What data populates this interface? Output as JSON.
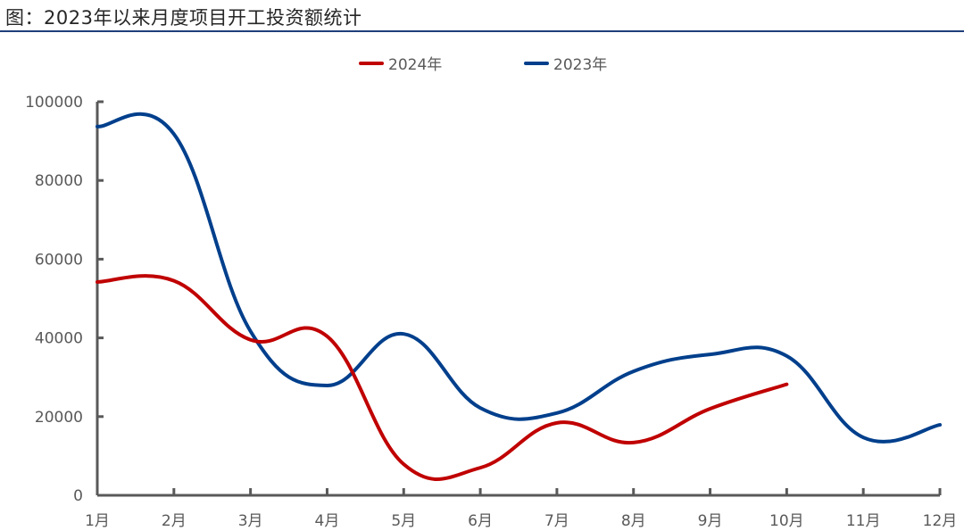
{
  "title": "图：2023年以来月度项目开工投资额统计",
  "colors": {
    "series_2024": "#c00000",
    "series_2023": "#003f8c",
    "axis": "#595959",
    "rule": "#1f3f7a"
  },
  "legend": [
    {
      "label": "2024年",
      "color": "#c00000"
    },
    {
      "label": "2023年",
      "color": "#003f8c"
    }
  ],
  "chart_data": {
    "type": "line",
    "title": "图：2023年以来月度项目开工投资额统计",
    "xlabel": "",
    "ylabel": "",
    "categories": [
      "1月",
      "2月",
      "3月",
      "4月",
      "5月",
      "6月",
      "7月",
      "8月",
      "9月",
      "10月",
      "11月",
      "12月"
    ],
    "yticks": [
      0,
      20000,
      40000,
      60000,
      80000,
      100000
    ],
    "ylim": [
      0,
      100000
    ],
    "grid": false,
    "legend_position": "top",
    "smooth": true,
    "series": [
      {
        "name": "2024年",
        "color": "#c00000",
        "values": [
          54200,
          54500,
          39500,
          40400,
          7900,
          7000,
          18400,
          13400,
          22000,
          28200,
          null,
          null
        ]
      },
      {
        "name": "2023年",
        "color": "#003f8c",
        "values": [
          93700,
          91800,
          41700,
          27900,
          41000,
          22200,
          20900,
          31500,
          35800,
          35400,
          14700,
          17900
        ]
      }
    ]
  }
}
